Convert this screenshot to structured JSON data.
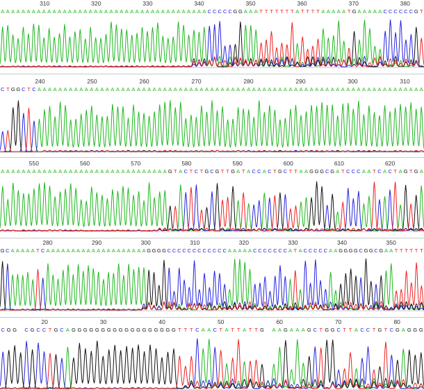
{
  "colors": {
    "A": "#1fb71f",
    "C": "#2222dd",
    "G": "#111111",
    "T": "#ee2020",
    "N": "#c050c0"
  },
  "panels": [
    {
      "id": "read-1",
      "first_pos": 302,
      "last_pos": 383,
      "major_step": 10,
      "bases": "AAAAAAAAAAAAAAAAAAAAAAAAAAAAAAAAAAAAAAAACCCCCGGAAATTTTTTTATTTTAAAAATGAAAAACCCCCCGT",
      "ticks": [
        "310",
        "320",
        "330",
        "340",
        "350",
        "360",
        "370",
        "380"
      ],
      "trace": {
        "clean_until": 0.44,
        "clean_base": "A",
        "noise": 0.6
      }
    },
    {
      "id": "read-2",
      "first_pos": 233,
      "last_pos": 313,
      "major_step": 10,
      "bases": "CTGGCTCAAAAAAAAAAAAAAAAAAAAAAAAAAAAAAAAAAAAAAAAAAAAAAAAAAAAAAAAAAAAAAAAAAAAAAAAAA",
      "ticks": [
        "240",
        "250",
        "260",
        "270",
        "280",
        "290",
        "300",
        "310"
      ],
      "trace": {
        "clean_from": 0.09,
        "clean_base": "A",
        "noise": 0.0
      }
    },
    {
      "id": "read-3",
      "first_pos": 544,
      "last_pos": 626,
      "major_step": 10,
      "bases": "AAAAAAAAAAAAAAAAAAAAAAAAAAAAAAAAGTACTCTGCGTTGATACCACTGCTTAAGGGCGATCCCAATCACTAGTGA",
      "ticks": [
        "550",
        "560",
        "570",
        "580",
        "590",
        "600",
        "610",
        "620"
      ],
      "trace": {
        "clean_until": 0.36,
        "clean_base": "A",
        "noise": 0.15
      }
    },
    {
      "id": "read-4",
      "first_pos": 271,
      "last_pos": 356,
      "major_step": 10,
      "bases": "GCAAAAATCAAAAAAAAAAAAAAAAAAAAGGGGCCCCCCCCCCCCAAAAACCCCCCCATACCCCCAAGGGGCGGCGAATTTTTT",
      "ticks": [
        "280",
        "290",
        "300",
        "310",
        "320",
        "330",
        "340",
        "350"
      ],
      "trace": {
        "clean_until": 0.33,
        "clean_base": "A",
        "noise": 0.45
      }
    },
    {
      "id": "read-5",
      "first_pos": 13,
      "last_pos": 84,
      "major_step": 10,
      "bases": "CGG CGCCTGCAGGGGGGGGGGGGGGGGGGTTTCAACTATTATTG AAGAAAGCTGGCTTACCTGTCGAGGG",
      "ticks": [
        "20",
        "30",
        "40",
        "50",
        "60",
        "70",
        "80"
      ],
      "trace": {
        "clean_until": 0.42,
        "clean_base": "G",
        "noise": 0.55
      }
    }
  ]
}
